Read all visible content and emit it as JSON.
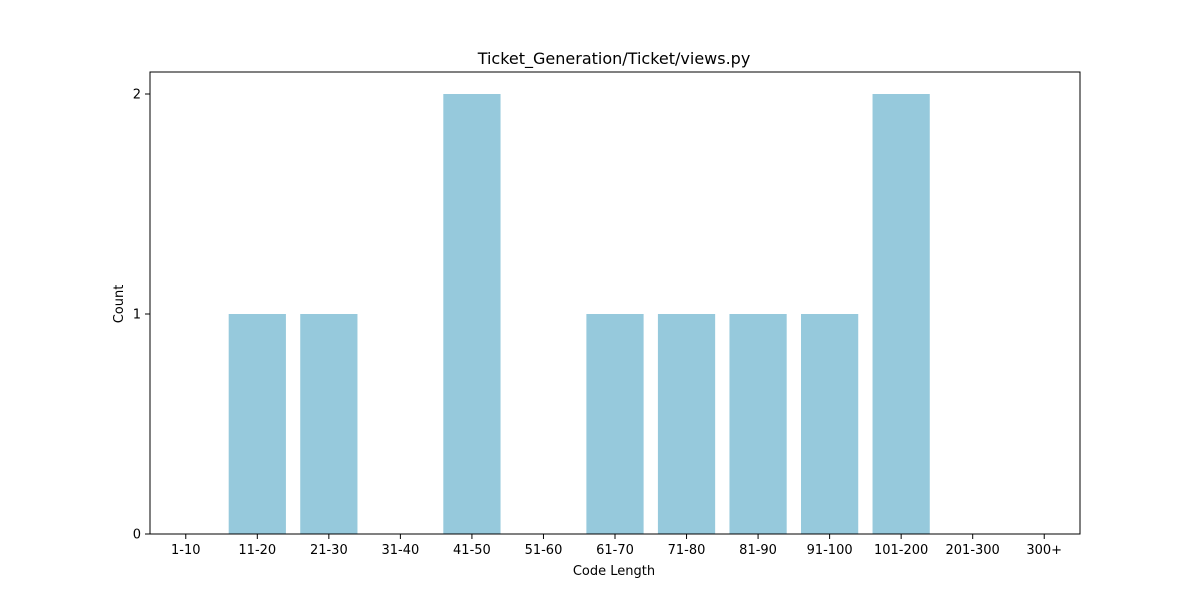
{
  "chart_data": {
    "type": "bar",
    "title": "Ticket_Generation/Ticket/views.py",
    "xlabel": "Code Length",
    "ylabel": "Count",
    "categories": [
      "1-10",
      "11-20",
      "21-30",
      "31-40",
      "41-50",
      "51-60",
      "61-70",
      "71-80",
      "81-90",
      "91-100",
      "101-200",
      "201-300",
      "300+"
    ],
    "values": [
      0,
      1,
      1,
      0,
      2,
      0,
      1,
      1,
      1,
      1,
      2,
      0,
      0
    ],
    "ylim": [
      0,
      2.1
    ],
    "yticks": [
      0,
      1,
      2
    ],
    "bar_color": "#96c9dc",
    "grid": false,
    "legend": false
  }
}
